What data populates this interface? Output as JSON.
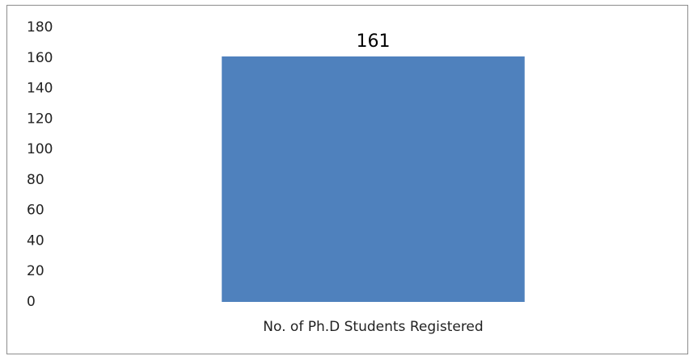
{
  "chart_data": {
    "type": "bar",
    "categories": [
      "No. of Ph.D Students Registered"
    ],
    "values": [
      161
    ],
    "color": "#4f81bd",
    "ylim": [
      0,
      180
    ],
    "yticks": [
      0,
      20,
      40,
      60,
      80,
      100,
      120,
      140,
      160,
      180
    ],
    "grid": false,
    "data_labels": true
  }
}
